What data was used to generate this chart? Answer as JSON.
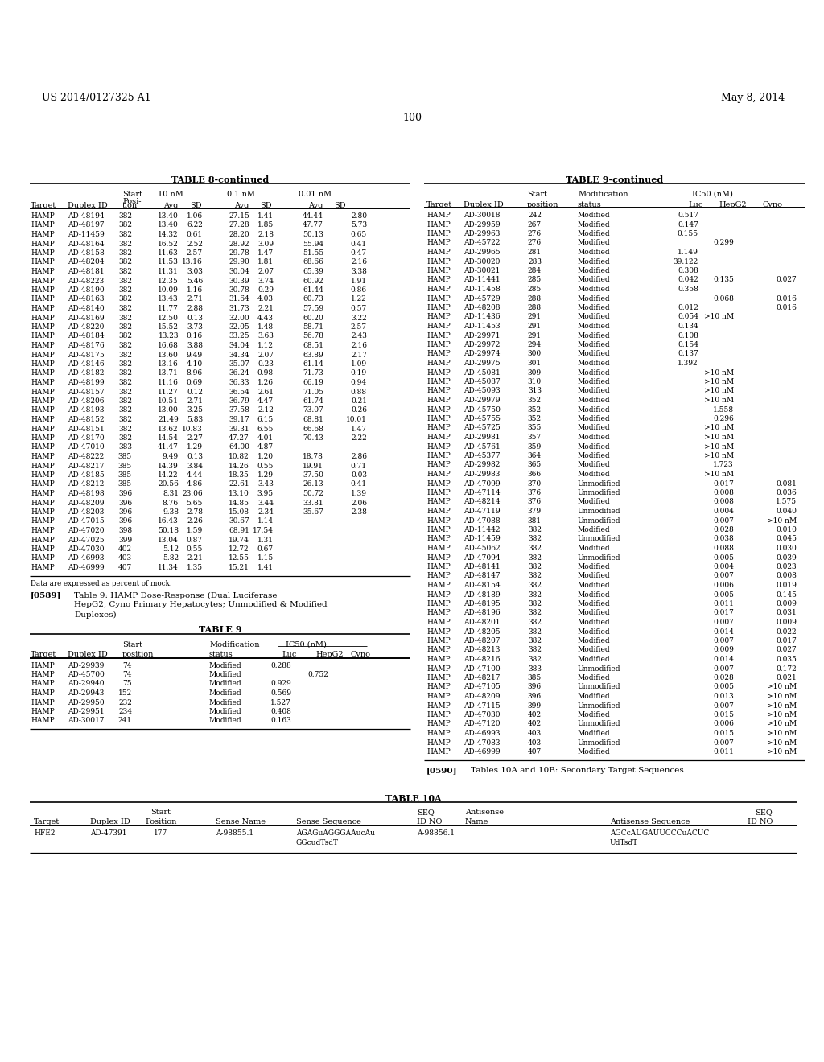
{
  "header_left": "US 2014/0127325 A1",
  "header_right": "May 8, 2014",
  "page_number": "100",
  "table8_title": "TABLE 8-continued",
  "table8_data": [
    [
      "HAMP",
      "AD-48194",
      "382",
      "13.40",
      "1.06",
      "27.15",
      "1.41",
      "44.44",
      "2.80"
    ],
    [
      "HAMP",
      "AD-48197",
      "382",
      "13.40",
      "6.22",
      "27.28",
      "1.85",
      "47.77",
      "5.73"
    ],
    [
      "HAMP",
      "AD-11459",
      "382",
      "14.32",
      "0.61",
      "28.20",
      "2.18",
      "50.13",
      "0.65"
    ],
    [
      "HAMP",
      "AD-48164",
      "382",
      "16.52",
      "2.52",
      "28.92",
      "3.09",
      "55.94",
      "0.41"
    ],
    [
      "HAMP",
      "AD-48158",
      "382",
      "11.63",
      "2.57",
      "29.78",
      "1.47",
      "51.55",
      "0.47"
    ],
    [
      "HAMP",
      "AD-48204",
      "382",
      "11.53",
      "13.16",
      "29.90",
      "1.81",
      "68.66",
      "2.16"
    ],
    [
      "HAMP",
      "AD-48181",
      "382",
      "11.31",
      "3.03",
      "30.04",
      "2.07",
      "65.39",
      "3.38"
    ],
    [
      "HAMP",
      "AD-48223",
      "382",
      "12.35",
      "5.46",
      "30.39",
      "3.74",
      "60.92",
      "1.91"
    ],
    [
      "HAMP",
      "AD-48190",
      "382",
      "10.09",
      "1.16",
      "30.78",
      "0.29",
      "61.44",
      "0.86"
    ],
    [
      "HAMP",
      "AD-48163",
      "382",
      "13.43",
      "2.71",
      "31.64",
      "4.03",
      "60.73",
      "1.22"
    ],
    [
      "HAMP",
      "AD-48140",
      "382",
      "11.77",
      "2.88",
      "31.73",
      "2.21",
      "57.59",
      "0.57"
    ],
    [
      "HAMP",
      "AD-48169",
      "382",
      "12.50",
      "0.13",
      "32.00",
      "4.43",
      "60.20",
      "3.22"
    ],
    [
      "HAMP",
      "AD-48220",
      "382",
      "15.52",
      "3.73",
      "32.05",
      "1.48",
      "58.71",
      "2.57"
    ],
    [
      "HAMP",
      "AD-48184",
      "382",
      "13.23",
      "0.16",
      "33.25",
      "3.63",
      "56.78",
      "2.43"
    ],
    [
      "HAMP",
      "AD-48176",
      "382",
      "16.68",
      "3.88",
      "34.04",
      "1.12",
      "68.51",
      "2.16"
    ],
    [
      "HAMP",
      "AD-48175",
      "382",
      "13.60",
      "9.49",
      "34.34",
      "2.07",
      "63.89",
      "2.17"
    ],
    [
      "HAMP",
      "AD-48146",
      "382",
      "13.16",
      "4.10",
      "35.07",
      "0.23",
      "61.14",
      "1.09"
    ],
    [
      "HAMP",
      "AD-48182",
      "382",
      "13.71",
      "8.96",
      "36.24",
      "0.98",
      "71.73",
      "0.19"
    ],
    [
      "HAMP",
      "AD-48199",
      "382",
      "11.16",
      "0.69",
      "36.33",
      "1.26",
      "66.19",
      "0.94"
    ],
    [
      "HAMP",
      "AD-48157",
      "382",
      "11.27",
      "0.12",
      "36.54",
      "2.61",
      "71.05",
      "0.88"
    ],
    [
      "HAMP",
      "AD-48206",
      "382",
      "10.51",
      "2.71",
      "36.79",
      "4.47",
      "61.74",
      "0.21"
    ],
    [
      "HAMP",
      "AD-48193",
      "382",
      "13.00",
      "3.25",
      "37.58",
      "2.12",
      "73.07",
      "0.26"
    ],
    [
      "HAMP",
      "AD-48152",
      "382",
      "21.49",
      "5.83",
      "39.17",
      "6.15",
      "68.81",
      "10.01"
    ],
    [
      "HAMP",
      "AD-48151",
      "382",
      "13.62",
      "10.83",
      "39.31",
      "6.55",
      "66.68",
      "1.47"
    ],
    [
      "HAMP",
      "AD-48170",
      "382",
      "14.54",
      "2.27",
      "47.27",
      "4.01",
      "70.43",
      "2.22"
    ],
    [
      "HAMP",
      "AD-47010",
      "383",
      "41.47",
      "1.29",
      "64.00",
      "4.87",
      "",
      ""
    ],
    [
      "HAMP",
      "AD-48222",
      "385",
      "9.49",
      "0.13",
      "10.82",
      "1.20",
      "18.78",
      "2.86"
    ],
    [
      "HAMP",
      "AD-48217",
      "385",
      "14.39",
      "3.84",
      "14.26",
      "0.55",
      "19.91",
      "0.71"
    ],
    [
      "HAMP",
      "AD-48185",
      "385",
      "14.22",
      "4.44",
      "18.35",
      "1.29",
      "37.50",
      "0.03"
    ],
    [
      "HAMP",
      "AD-48212",
      "385",
      "20.56",
      "4.86",
      "22.61",
      "3.43",
      "26.13",
      "0.41"
    ],
    [
      "HAMP",
      "AD-48198",
      "396",
      "8.31",
      "23.06",
      "13.10",
      "3.95",
      "50.72",
      "1.39"
    ],
    [
      "HAMP",
      "AD-48209",
      "396",
      "8.76",
      "5.65",
      "14.85",
      "3.44",
      "33.81",
      "2.06"
    ],
    [
      "HAMP",
      "AD-48203",
      "396",
      "9.38",
      "2.78",
      "15.08",
      "2.34",
      "35.67",
      "2.38"
    ],
    [
      "HAMP",
      "AD-47015",
      "396",
      "16.43",
      "2.26",
      "30.67",
      "1.14",
      "",
      ""
    ],
    [
      "HAMP",
      "AD-47020",
      "398",
      "50.18",
      "1.59",
      "68.91",
      "17.54",
      "",
      ""
    ],
    [
      "HAMP",
      "AD-47025",
      "399",
      "13.04",
      "0.87",
      "19.74",
      "1.31",
      "",
      ""
    ],
    [
      "HAMP",
      "AD-47030",
      "402",
      "5.12",
      "0.55",
      "12.72",
      "0.67",
      "",
      ""
    ],
    [
      "HAMP",
      "AD-46993",
      "403",
      "5.82",
      "2.21",
      "12.55",
      "1.15",
      "",
      ""
    ],
    [
      "HAMP",
      "AD-46999",
      "407",
      "11.34",
      "1.35",
      "15.21",
      "1.41",
      "",
      ""
    ]
  ],
  "table8_footnote": "Data are expressed as percent of mock.",
  "table9_title": "TABLE 9-continued",
  "table9_data": [
    [
      "HAMP",
      "AD-30018",
      "242",
      "Modified",
      "0.517",
      "",
      ""
    ],
    [
      "HAMP",
      "AD-29959",
      "267",
      "Modified",
      "0.147",
      "",
      ""
    ],
    [
      "HAMP",
      "AD-29963",
      "276",
      "Modified",
      "0.155",
      "",
      ""
    ],
    [
      "HAMP",
      "AD-45722",
      "276",
      "Modified",
      "",
      "0.299",
      ""
    ],
    [
      "HAMP",
      "AD-29965",
      "281",
      "Modified",
      "1.149",
      "",
      ""
    ],
    [
      "HAMP",
      "AD-30020",
      "283",
      "Modified",
      "39.122",
      "",
      ""
    ],
    [
      "HAMP",
      "AD-30021",
      "284",
      "Modified",
      "0.308",
      "",
      ""
    ],
    [
      "HAMP",
      "AD-11441",
      "285",
      "Modified",
      "0.042",
      "0.135",
      "0.027"
    ],
    [
      "HAMP",
      "AD-11458",
      "285",
      "Modified",
      "0.358",
      "",
      ""
    ],
    [
      "HAMP",
      "AD-45729",
      "288",
      "Modified",
      "",
      "0.068",
      "0.016"
    ],
    [
      "HAMP",
      "AD-48208",
      "288",
      "Modified",
      "0.012",
      "",
      "0.016"
    ],
    [
      "HAMP",
      "AD-11436",
      "291",
      "Modified",
      "0.054",
      ">10 nM",
      ""
    ],
    [
      "HAMP",
      "AD-11453",
      "291",
      "Modified",
      "0.134",
      "",
      ""
    ],
    [
      "HAMP",
      "AD-29971",
      "291",
      "Modified",
      "0.108",
      "",
      ""
    ],
    [
      "HAMP",
      "AD-29972",
      "294",
      "Modified",
      "0.154",
      "",
      ""
    ],
    [
      "HAMP",
      "AD-29974",
      "300",
      "Modified",
      "0.137",
      "",
      ""
    ],
    [
      "HAMP",
      "AD-29975",
      "301",
      "Modified",
      "1.392",
      "",
      ""
    ],
    [
      "HAMP",
      "AD-45081",
      "309",
      "Modified",
      "",
      ">10 nM",
      ""
    ],
    [
      "HAMP",
      "AD-45087",
      "310",
      "Modified",
      "",
      ">10 nM",
      ""
    ],
    [
      "HAMP",
      "AD-45093",
      "313",
      "Modified",
      "",
      ">10 nM",
      ""
    ],
    [
      "HAMP",
      "AD-29979",
      "352",
      "Modified",
      "",
      ">10 nM",
      ""
    ],
    [
      "HAMP",
      "AD-45750",
      "352",
      "Modified",
      "",
      "1.558",
      ""
    ],
    [
      "HAMP",
      "AD-45755",
      "352",
      "Modified",
      "",
      "0.296",
      ""
    ],
    [
      "HAMP",
      "AD-45725",
      "355",
      "Modified",
      "",
      ">10 nM",
      ""
    ],
    [
      "HAMP",
      "AD-29981",
      "357",
      "Modified",
      "",
      ">10 nM",
      ""
    ],
    [
      "HAMP",
      "AD-45761",
      "359",
      "Modified",
      "",
      ">10 nM",
      ""
    ],
    [
      "HAMP",
      "AD-45377",
      "364",
      "Modified",
      "",
      ">10 nM",
      ""
    ],
    [
      "HAMP",
      "AD-29982",
      "365",
      "Modified",
      "",
      "1.723",
      ""
    ],
    [
      "HAMP",
      "AD-29983",
      "366",
      "Modified",
      "",
      ">10 nM",
      ""
    ],
    [
      "HAMP",
      "AD-47099",
      "370",
      "Unmodified",
      "",
      "0.017",
      "0.081"
    ],
    [
      "HAMP",
      "AD-47114",
      "376",
      "Unmodified",
      "",
      "0.008",
      "0.036"
    ],
    [
      "HAMP",
      "AD-48214",
      "376",
      "Modified",
      "",
      "0.008",
      "1.575"
    ],
    [
      "HAMP",
      "AD-47119",
      "379",
      "Unmodified",
      "",
      "0.004",
      "0.040"
    ],
    [
      "HAMP",
      "AD-47088",
      "381",
      "Unmodified",
      "",
      "0.007",
      ">10 nM"
    ],
    [
      "HAMP",
      "AD-11442",
      "382",
      "Modified",
      "",
      "0.028",
      "0.010"
    ],
    [
      "HAMP",
      "AD-11459",
      "382",
      "Unmodified",
      "",
      "0.038",
      "0.045"
    ],
    [
      "HAMP",
      "AD-45062",
      "382",
      "Modified",
      "",
      "0.088",
      "0.030"
    ],
    [
      "HAMP",
      "AD-47094",
      "382",
      "Unmodified",
      "",
      "0.005",
      "0.039"
    ],
    [
      "HAMP",
      "AD-48141",
      "382",
      "Modified",
      "",
      "0.004",
      "0.023"
    ],
    [
      "HAMP",
      "AD-48147",
      "382",
      "Modified",
      "",
      "0.007",
      "0.008"
    ],
    [
      "HAMP",
      "AD-48154",
      "382",
      "Modified",
      "",
      "0.006",
      "0.019"
    ],
    [
      "HAMP",
      "AD-48189",
      "382",
      "Modified",
      "",
      "0.005",
      "0.145"
    ],
    [
      "HAMP",
      "AD-48195",
      "382",
      "Modified",
      "",
      "0.011",
      "0.009"
    ],
    [
      "HAMP",
      "AD-48196",
      "382",
      "Modified",
      "",
      "0.017",
      "0.031"
    ],
    [
      "HAMP",
      "AD-48201",
      "382",
      "Modified",
      "",
      "0.007",
      "0.009"
    ],
    [
      "HAMP",
      "AD-48205",
      "382",
      "Modified",
      "",
      "0.014",
      "0.022"
    ],
    [
      "HAMP",
      "AD-48207",
      "382",
      "Modified",
      "",
      "0.007",
      "0.017"
    ],
    [
      "HAMP",
      "AD-48213",
      "382",
      "Modified",
      "",
      "0.009",
      "0.027"
    ],
    [
      "HAMP",
      "AD-48216",
      "382",
      "Modified",
      "",
      "0.014",
      "0.035"
    ],
    [
      "HAMP",
      "AD-47100",
      "383",
      "Unmodified",
      "",
      "0.007",
      "0.172"
    ],
    [
      "HAMP",
      "AD-48217",
      "385",
      "Modified",
      "",
      "0.028",
      "0.021"
    ],
    [
      "HAMP",
      "AD-47105",
      "396",
      "Unmodified",
      "",
      "0.005",
      ">10 nM"
    ],
    [
      "HAMP",
      "AD-48209",
      "396",
      "Modified",
      "",
      "0.013",
      ">10 nM"
    ],
    [
      "HAMP",
      "AD-47115",
      "399",
      "Unmodified",
      "",
      "0.007",
      ">10 nM"
    ],
    [
      "HAMP",
      "AD-47030",
      "402",
      "Modified",
      "",
      "0.015",
      ">10 nM"
    ],
    [
      "HAMP",
      "AD-47120",
      "402",
      "Unmodified",
      "",
      "0.006",
      ">10 nM"
    ],
    [
      "HAMP",
      "AD-46993",
      "403",
      "Modified",
      "",
      "0.015",
      ">10 nM"
    ],
    [
      "HAMP",
      "AD-47083",
      "403",
      "Unmodified",
      "",
      "0.007",
      ">10 nM"
    ],
    [
      "HAMP",
      "AD-46999",
      "407",
      "Modified",
      "",
      "0.011",
      ">10 nM"
    ]
  ],
  "table9_small_title": "TABLE 9",
  "table9_small_data": [
    [
      "HAMP",
      "AD-29939",
      "74",
      "Modified",
      "0.288",
      "",
      ""
    ],
    [
      "HAMP",
      "AD-45700",
      "74",
      "Modified",
      "",
      "0.752",
      ""
    ],
    [
      "HAMP",
      "AD-29940",
      "75",
      "Modified",
      "0.929",
      "",
      ""
    ],
    [
      "HAMP",
      "AD-29943",
      "152",
      "Modified",
      "0.569",
      "",
      ""
    ],
    [
      "HAMP",
      "AD-29950",
      "232",
      "Modified",
      "1.527",
      "",
      ""
    ],
    [
      "HAMP",
      "AD-29951",
      "234",
      "Modified",
      "0.408",
      "",
      ""
    ],
    [
      "HAMP",
      "AD-30017",
      "241",
      "Modified",
      "0.163",
      "",
      ""
    ]
  ],
  "paragraph_590": "[0590]   Tables 10A and 10B: Secondary Target Sequences",
  "table10a_title": "TABLE 10A",
  "table10a_sense_seq1": "AGAGuAGGGAAucAu",
  "table10a_sense_seq2": "GGcudTsdT",
  "table10a_antisense_seq1": "AGCcAUGAUUCCCuACUC",
  "table10a_antisense_seq2": "UdTsdT",
  "bg_color": "#ffffff",
  "text_color": "#000000"
}
